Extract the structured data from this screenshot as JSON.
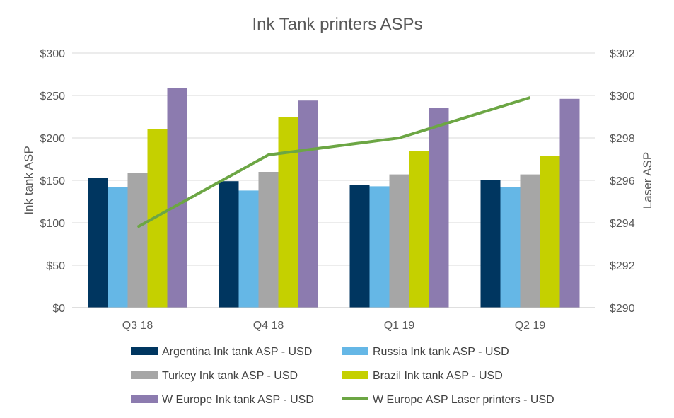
{
  "chart_data": {
    "type": "bar",
    "title": "Ink Tank printers ASPs",
    "categories": [
      "Q3 18",
      "Q4 18",
      "Q1 19",
      "Q2 19"
    ],
    "ylabel": "Ink tank ASP",
    "y2label": "Laser ASP",
    "ylim": [
      0,
      300
    ],
    "y2lim": [
      290,
      302
    ],
    "yticks": [
      "$0",
      "$50",
      "$100",
      "$150",
      "$200",
      "$250",
      "$300"
    ],
    "y2ticks": [
      "$290",
      "$292",
      "$294",
      "$296",
      "$298",
      "$300",
      "$302"
    ],
    "grid": true,
    "legend_position": "bottom",
    "series": [
      {
        "name": "Argentina Ink tank ASP - USD",
        "type": "bar",
        "axis": "left",
        "color": "#003660",
        "values": [
          153,
          149,
          145,
          150
        ]
      },
      {
        "name": "Russia Ink tank ASP - USD",
        "type": "bar",
        "axis": "left",
        "color": "#65B7E6",
        "values": [
          142,
          138,
          143,
          142
        ]
      },
      {
        "name": "Turkey Ink tank ASP - USD",
        "type": "bar",
        "axis": "left",
        "color": "#A6A6A6",
        "values": [
          159,
          160,
          157,
          157
        ]
      },
      {
        "name": "Brazil Ink tank ASP - USD",
        "type": "bar",
        "axis": "left",
        "color": "#C5D000",
        "values": [
          210,
          225,
          185,
          179
        ]
      },
      {
        "name": "W Europe Ink tank ASP - USD",
        "type": "bar",
        "axis": "left",
        "color": "#8C7BAF",
        "values": [
          259,
          244,
          235,
          246
        ]
      },
      {
        "name": "W Europe ASP Laser printers - USD",
        "type": "line",
        "axis": "right",
        "color": "#6CA644",
        "values": [
          293.8,
          297.2,
          298.0,
          299.9
        ]
      }
    ]
  }
}
